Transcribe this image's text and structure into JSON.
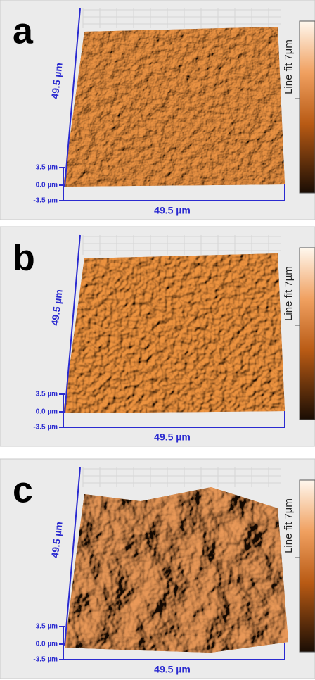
{
  "panels": [
    {
      "letter": "a",
      "y_axis_label": "49.5 µm",
      "x_axis_label": "49.5 µm",
      "z_ticks": [
        "3.5 µm",
        "0.0 µm",
        "-3.5 µm"
      ],
      "colorbar_label": "Line fit 7µm"
    },
    {
      "letter": "b",
      "y_axis_label": "49.5 µm",
      "x_axis_label": "49.5 µm",
      "z_ticks": [
        "3.5 µm",
        "0.0 µm",
        "-3.5 µm"
      ],
      "colorbar_label": "Line fit 7µm"
    },
    {
      "letter": "c",
      "y_axis_label": "49.5 µm",
      "x_axis_label": "49.5 µm",
      "z_ticks": [
        "3.5 µm",
        "0.0 µm",
        "-3.5 µm"
      ],
      "colorbar_label": "Line fit 7µm"
    }
  ]
}
